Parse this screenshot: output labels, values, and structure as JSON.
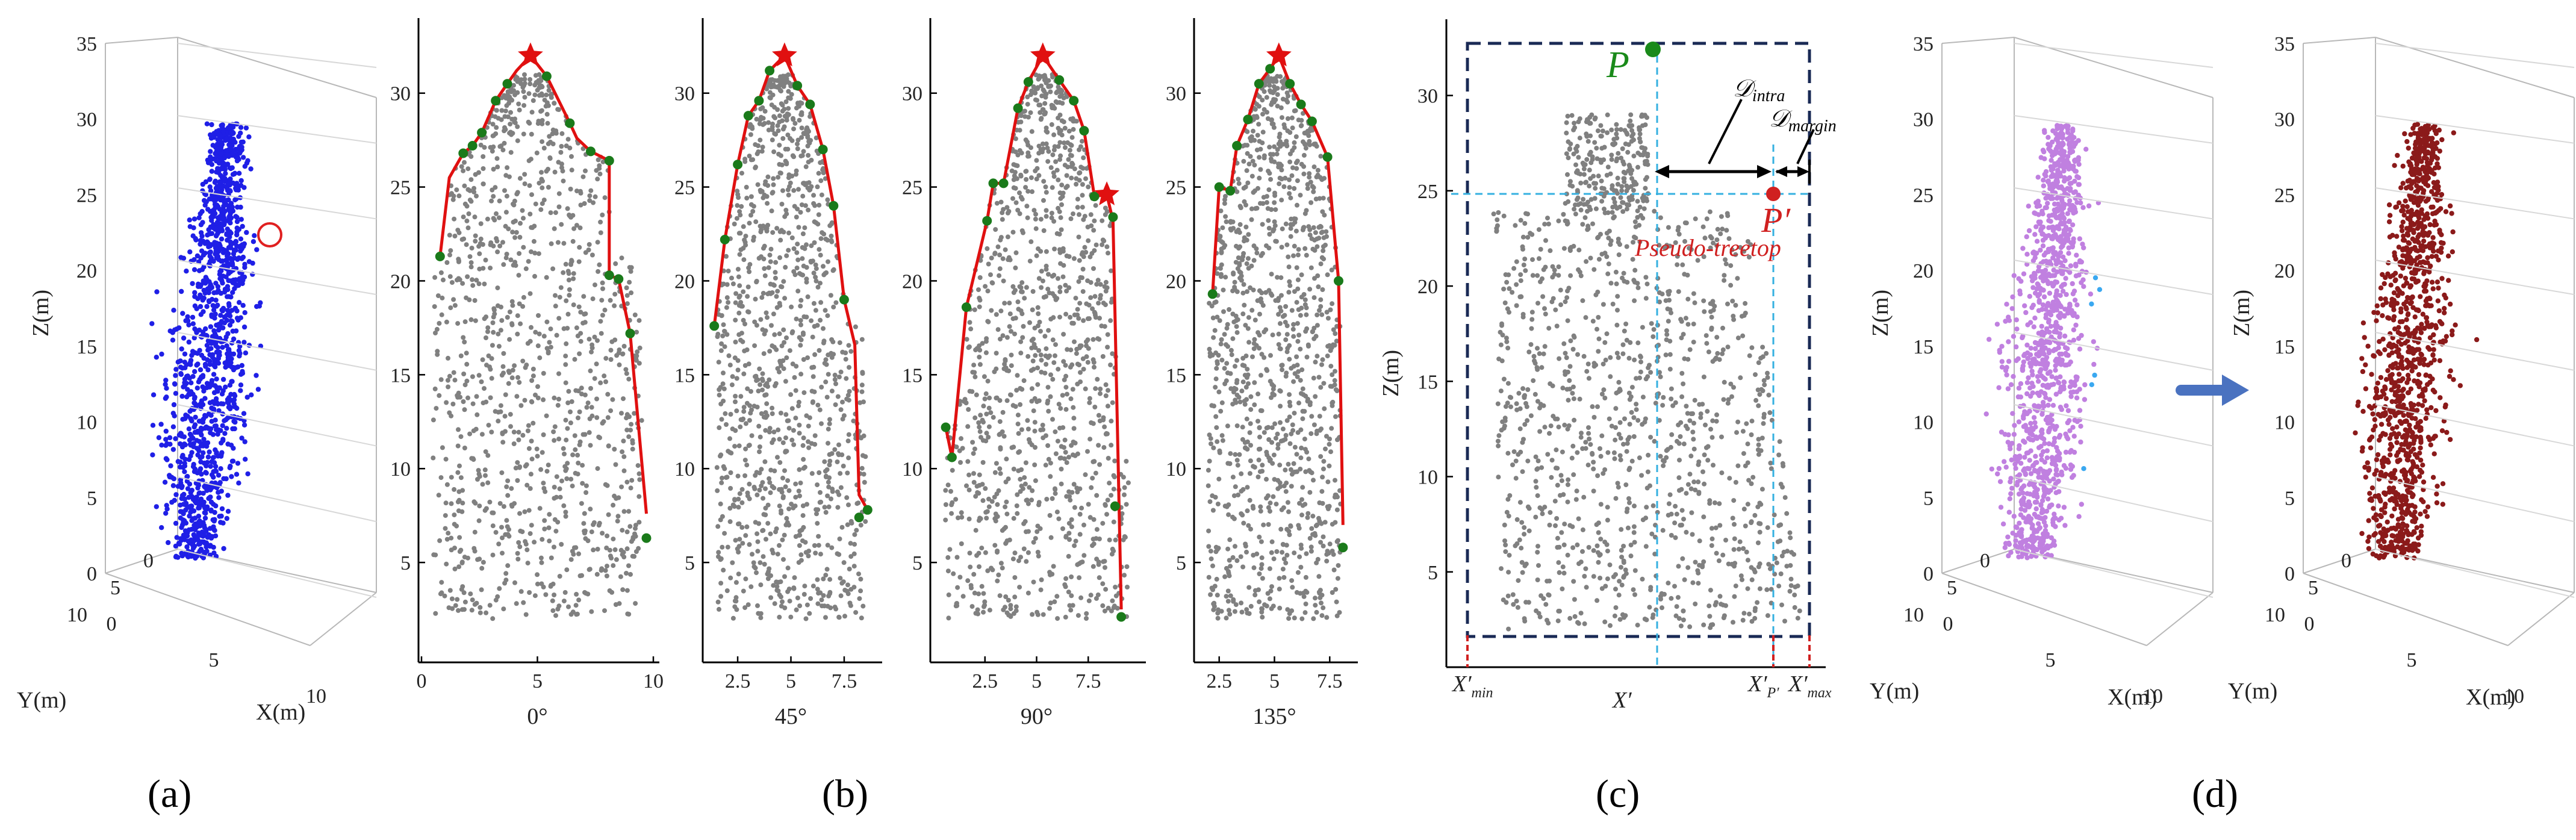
{
  "chart_data": [
    {
      "id": "a",
      "type": "scatter3d",
      "panel_label": "(a)",
      "zlabel": "Z(m)",
      "ylabel": "Y(m)",
      "xlabel": "X(m)",
      "zticks": [
        "0",
        "5",
        "10",
        "15",
        "20",
        "25",
        "30",
        "35"
      ],
      "yticks": [
        "0",
        "5",
        "10"
      ],
      "xticks": [
        "0",
        "5",
        "10"
      ],
      "point_color": "#1f1fe6",
      "marker_color": "#e02020"
    },
    {
      "id": "b",
      "type": "scatter",
      "panel_label": "(b)",
      "subplots": [
        {
          "angle_label": "0°",
          "xlim": [
            0,
            10
          ],
          "ylim": [
            0,
            34
          ],
          "xticks": [
            "0",
            "5",
            "10"
          ],
          "yticks": [
            "5",
            "10",
            "15",
            "20",
            "25",
            "30"
          ],
          "treetop": [
            4.7,
            32
          ],
          "hull": [
            [
              0.8,
              21.3
            ],
            [
              1.2,
              25.5
            ],
            [
              1.8,
              26.8
            ],
            [
              2.2,
              27.2
            ],
            [
              2.6,
              27.9
            ],
            [
              3.2,
              29.6
            ],
            [
              3.7,
              30.5
            ],
            [
              4.1,
              31.2
            ],
            [
              4.7,
              32
            ],
            [
              5.4,
              30.9
            ],
            [
              6,
              29.4
            ],
            [
              6.4,
              28.4
            ],
            [
              6.7,
              27.6
            ],
            [
              7.3,
              26.9
            ],
            [
              8.1,
              26.4
            ],
            [
              8.1,
              20.3
            ],
            [
              8.5,
              20.1
            ],
            [
              9,
              17.2
            ],
            [
              9.7,
              7.6
            ]
          ],
          "hull_points": [
            [
              0.8,
              21.3
            ],
            [
              1.8,
              26.8
            ],
            [
              2.2,
              27.2
            ],
            [
              2.6,
              27.9
            ],
            [
              3.2,
              29.6
            ],
            [
              3.7,
              30.5
            ],
            [
              5.4,
              30.9
            ],
            [
              6.4,
              28.4
            ],
            [
              7.3,
              26.9
            ],
            [
              8.1,
              26.4
            ],
            [
              8.1,
              20.3
            ],
            [
              8.5,
              20.1
            ],
            [
              9,
              17.2
            ],
            [
              9.7,
              6.3
            ]
          ]
        },
        {
          "angle_label": "45°",
          "xlim": [
            1,
            9
          ],
          "ylim": [
            0,
            34
          ],
          "xticks": [
            "2.5",
            "5",
            "7.5"
          ],
          "yticks": [
            "5",
            "10",
            "15",
            "20",
            "25",
            "30"
          ],
          "treetop": [
            4.7,
            32
          ],
          "hull": [
            [
              1.4,
              17.6
            ],
            [
              1.9,
              22.2
            ],
            [
              2.5,
              26.2
            ],
            [
              3,
              28.8
            ],
            [
              3.5,
              29.6
            ],
            [
              4,
              31.2
            ],
            [
              4.7,
              32
            ],
            [
              5.3,
              30.4
            ],
            [
              5.9,
              29.4
            ],
            [
              6.5,
              27
            ],
            [
              7,
              24
            ],
            [
              7.5,
              19
            ],
            [
              8,
              16.6
            ],
            [
              8.2,
              8.6
            ],
            [
              8.6,
              7.8
            ]
          ],
          "hull_points": [
            [
              1.4,
              17.6
            ],
            [
              1.9,
              22.2
            ],
            [
              2.5,
              26.2
            ],
            [
              3,
              28.8
            ],
            [
              3.5,
              29.6
            ],
            [
              4,
              31.2
            ],
            [
              5.3,
              30.4
            ],
            [
              5.9,
              29.4
            ],
            [
              6.5,
              27
            ],
            [
              7,
              24
            ],
            [
              7.5,
              19
            ],
            [
              8.6,
              7.8
            ],
            [
              8.2,
              7.4
            ]
          ]
        },
        {
          "angle_label": "90°",
          "xlim": [
            0,
            10
          ],
          "ylim": [
            0,
            34
          ],
          "xticks": [
            "2.5",
            "5",
            "7.5"
          ],
          "yticks": [
            "5",
            "10",
            "15",
            "20",
            "25",
            "30"
          ],
          "treetop": [
            5.3,
            32
          ],
          "treetop2": [
            8.4,
            24.6
          ],
          "hull": [
            [
              0.6,
              12.2
            ],
            [
              0.9,
              10.6
            ],
            [
              1.6,
              18.6
            ],
            [
              2.6,
              23.2
            ],
            [
              2.9,
              25.2
            ],
            [
              3.4,
              25.2
            ],
            [
              4.1,
              29.2
            ],
            [
              4.6,
              30.6
            ],
            [
              5.3,
              32
            ],
            [
              6.1,
              30.7
            ],
            [
              6.8,
              29.6
            ],
            [
              7.3,
              28
            ],
            [
              7.8,
              24.5
            ],
            [
              8.4,
              24.6
            ],
            [
              8.7,
              23.2
            ],
            [
              9.1,
              2.5
            ]
          ],
          "hull_points": [
            [
              0.6,
              12.2
            ],
            [
              0.9,
              10.6
            ],
            [
              1.6,
              18.6
            ],
            [
              2.6,
              23.2
            ],
            [
              2.9,
              25.2
            ],
            [
              3.4,
              25.2
            ],
            [
              4.1,
              29.2
            ],
            [
              4.6,
              30.6
            ],
            [
              6.1,
              30.7
            ],
            [
              6.8,
              29.6
            ],
            [
              7.3,
              28
            ],
            [
              7.8,
              24.5
            ],
            [
              8.7,
              23.4
            ],
            [
              8.8,
              8
            ],
            [
              9.1,
              2.1
            ]
          ]
        },
        {
          "angle_label": "135°",
          "xlim": [
            1.5,
            8.5
          ],
          "ylim": [
            0,
            34
          ],
          "xticks": [
            "2.5",
            "5",
            "7.5"
          ],
          "yticks": [
            "5",
            "10",
            "15",
            "20",
            "25",
            "30"
          ],
          "treetop": [
            5.2,
            32
          ],
          "hull": [
            [
              2.2,
              19.3
            ],
            [
              2.5,
              25
            ],
            [
              3,
              24.8
            ],
            [
              3.3,
              27.2
            ],
            [
              3.8,
              28.6
            ],
            [
              4.3,
              30.5
            ],
            [
              4.8,
              31.3
            ],
            [
              5.2,
              32
            ],
            [
              5.7,
              30.5
            ],
            [
              6.2,
              29.4
            ],
            [
              6.7,
              28.5
            ],
            [
              7.4,
              26.6
            ],
            [
              7.9,
              20
            ],
            [
              8.1,
              7
            ]
          ],
          "hull_points": [
            [
              2.2,
              19.3
            ],
            [
              2.5,
              25
            ],
            [
              3,
              24.8
            ],
            [
              3.3,
              27.2
            ],
            [
              3.8,
              28.6
            ],
            [
              4.3,
              30.5
            ],
            [
              4.8,
              31.3
            ],
            [
              5.7,
              30.5
            ],
            [
              6.2,
              29.4
            ],
            [
              6.7,
              28.5
            ],
            [
              7.4,
              26.6
            ],
            [
              7.9,
              20
            ],
            [
              8.1,
              5.8
            ]
          ]
        }
      ],
      "point_color": "#808080",
      "hull_color": "#e01010",
      "hull_point_color": "#1a7a1a",
      "treetop_color": "#e01010"
    },
    {
      "id": "c",
      "type": "scatter",
      "panel_label": "(c)",
      "ylabel": "Z(m)",
      "ylim": [
        0,
        34
      ],
      "yticks": [
        "5",
        "10",
        "15",
        "20",
        "25",
        "30"
      ],
      "x_markers": {
        "xmin": "X′",
        "xmin_sub": "min",
        "xc": "X′",
        "xp": "X′",
        "xp_sub": "P′",
        "xmax": "X′",
        "xmax_sub": "max"
      },
      "P_label": "P",
      "Pprime_label": "P′",
      "pseudo_label": "Pseudo-treetop",
      "d_intra": "𝒟",
      "d_intra_sub": "intra",
      "d_margin": "𝒟",
      "d_margin_sub": "margin",
      "P_point": [
        0.48,
        32.2
      ],
      "Pprime_point": [
        0.86,
        24.8
      ],
      "box_color": "#1a2a55",
      "guide_color": "#35b0e0",
      "P_color": "#1a8a1a",
      "Pprime_color": "#d02020"
    },
    {
      "id": "d",
      "type": "scatter3d",
      "panel_label": "(d)",
      "left": {
        "zlabel": "Z(m)",
        "ylabel": "Y(m)",
        "xlabel": "X(m)",
        "zticks": [
          "0",
          "5",
          "10",
          "15",
          "20",
          "25",
          "30",
          "35"
        ],
        "yticks": [
          "0",
          "5",
          "10"
        ],
        "xticks": [
          "0",
          "5",
          "10"
        ],
        "point_color": "#c080e0",
        "removed_color": "#3aa8f0"
      },
      "right": {
        "zlabel": "Z(m)",
        "ylabel": "Y(m)",
        "xlabel": "X(m)",
        "zticks": [
          "0",
          "5",
          "10",
          "15",
          "20",
          "25",
          "30",
          "35"
        ],
        "yticks": [
          "0",
          "5",
          "10"
        ],
        "xticks": [
          "0",
          "5",
          "10"
        ],
        "point_color": "#8b1a1a"
      },
      "arrow_color": "#4a72c0"
    }
  ]
}
